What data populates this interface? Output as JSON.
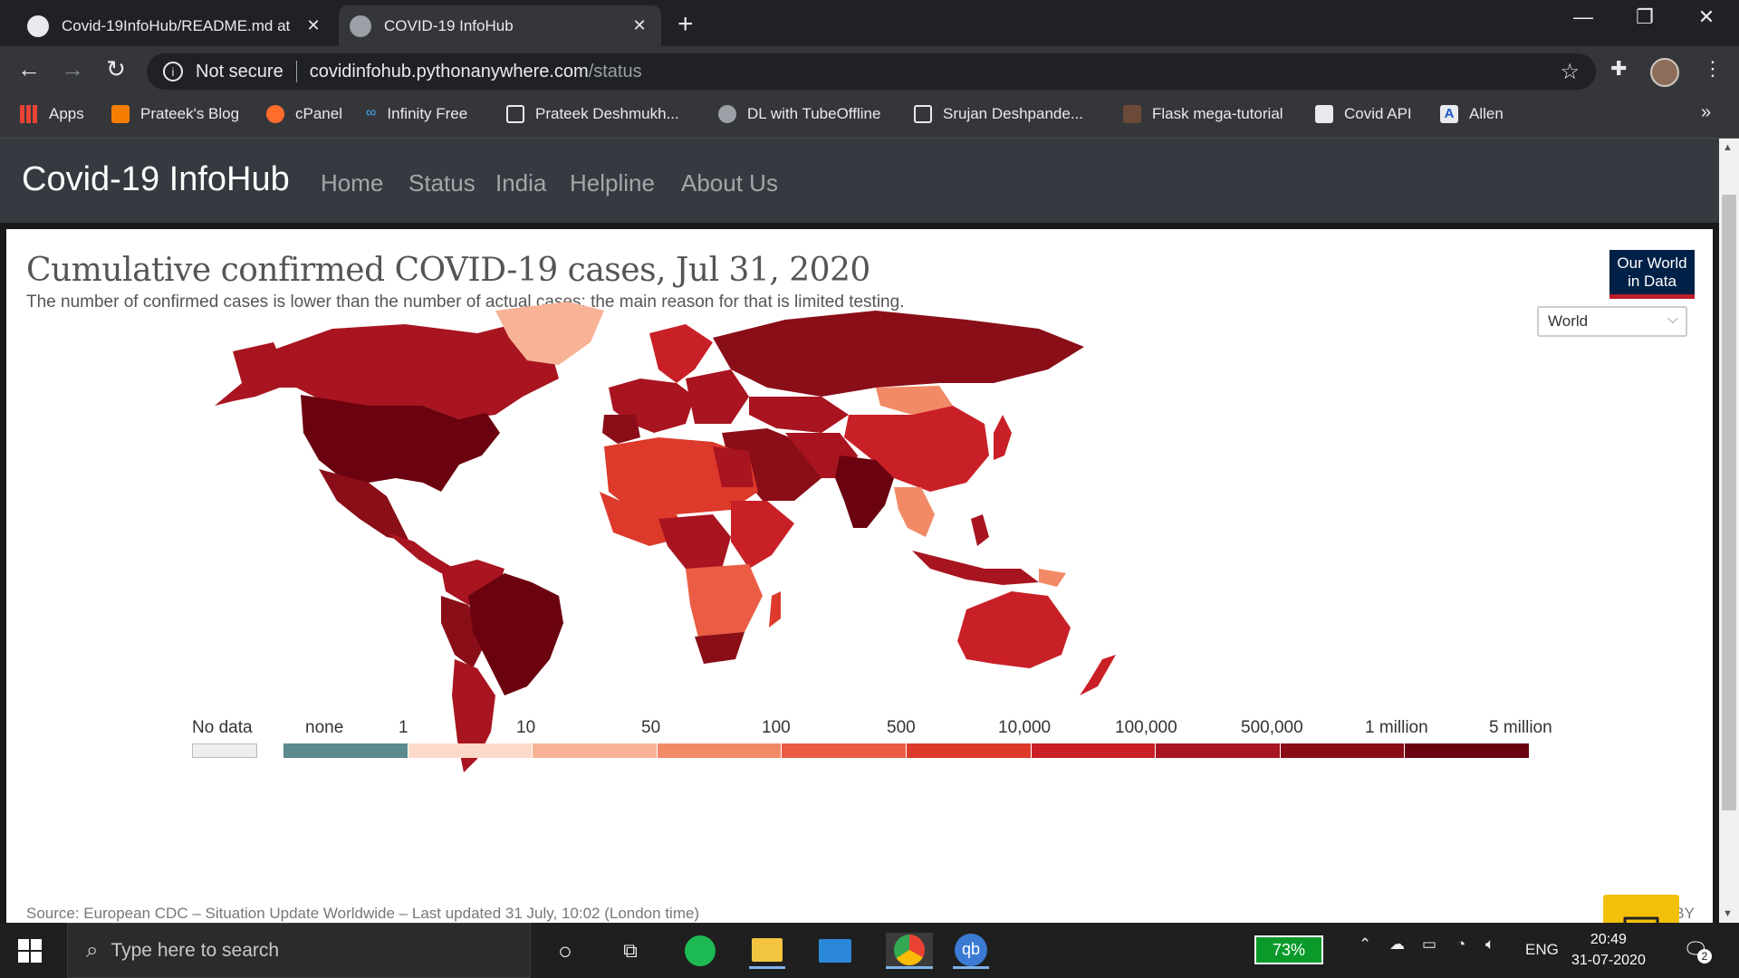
{
  "browser": {
    "tabs": [
      {
        "title": "Covid-19InfoHub/README.md at"
      },
      {
        "title": "COVID-19 InfoHub"
      }
    ],
    "security_label": "Not secure",
    "url_host": "covidinfohub.pythonanywhere.com",
    "url_path": "/status",
    "bookmarks": [
      {
        "label": "Apps"
      },
      {
        "label": "Prateek's Blog"
      },
      {
        "label": "cPanel"
      },
      {
        "label": "Infinity Free"
      },
      {
        "label": "Prateek Deshmukh..."
      },
      {
        "label": "DL with TubeOffline"
      },
      {
        "label": "Srujan Deshpande..."
      },
      {
        "label": "Flask mega-tutorial"
      },
      {
        "label": "Covid API"
      },
      {
        "label": "Allen"
      }
    ],
    "overflow_label": "»"
  },
  "site": {
    "brand": "Covid-19 InfoHub",
    "nav": [
      "Home",
      "Status",
      "India",
      "Helpline",
      "About Us"
    ]
  },
  "chart": {
    "title": "Cumulative confirmed COVID-19 cases, Jul 31, 2020",
    "subtitle": "The number of confirmed cases is lower than the number of actual cases; the main reason for that is limited testing.",
    "logo_line1": "Our World",
    "logo_line2": "in Data",
    "region_selected": "World",
    "legend_nodata": "No data",
    "legend_labels": [
      "none",
      "1",
      "10",
      "50",
      "100",
      "500",
      "10,000",
      "100,000",
      "500,000",
      "1 million",
      "5 million"
    ],
    "legend_colors": [
      "#5b8a8f",
      "#fcd9c8",
      "#f8b396",
      "#f28a67",
      "#ea5d44",
      "#dd3a2c",
      "#c92027",
      "#a8141f",
      "#8a0e18",
      "#6b0210"
    ],
    "source": "Source: European CDC – Situation Update Worldwide – Last updated 31 July, 10:02 (London time)",
    "license": "CC BY"
  },
  "taskbar": {
    "search_placeholder": "Type here to search",
    "battery": "73%",
    "language": "ENG",
    "time": "20:49",
    "date": "31-07-2020",
    "notifications": "2"
  }
}
